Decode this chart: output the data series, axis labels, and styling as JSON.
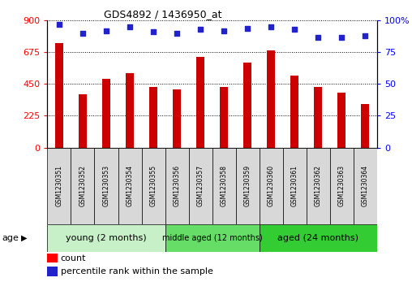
{
  "title": "GDS4892 / 1436950_at",
  "samples": [
    "GSM1230351",
    "GSM1230352",
    "GSM1230353",
    "GSM1230354",
    "GSM1230355",
    "GSM1230356",
    "GSM1230357",
    "GSM1230358",
    "GSM1230359",
    "GSM1230360",
    "GSM1230361",
    "GSM1230362",
    "GSM1230363",
    "GSM1230364"
  ],
  "counts": [
    740,
    380,
    490,
    530,
    430,
    410,
    645,
    430,
    600,
    690,
    510,
    430,
    390,
    310
  ],
  "percentiles": [
    97,
    90,
    92,
    95,
    91,
    90,
    93,
    92,
    94,
    95,
    93,
    87,
    87,
    88
  ],
  "groups": [
    {
      "label": "young (2 months)",
      "start": 0,
      "end": 5,
      "color": "#c8f0c8"
    },
    {
      "label": "middle aged (12 months)",
      "start": 5,
      "end": 9,
      "color": "#66dd66"
    },
    {
      "label": "aged (24 months)",
      "start": 9,
      "end": 14,
      "color": "#33cc33"
    }
  ],
  "bar_color": "#cc0000",
  "dot_color": "#2222cc",
  "ylim_left": [
    0,
    900
  ],
  "ylim_right": [
    0,
    100
  ],
  "yticks_left": [
    0,
    225,
    450,
    675,
    900
  ],
  "yticks_right": [
    0,
    25,
    50,
    75,
    100
  ],
  "ytick_right_labels": [
    "0",
    "25",
    "50",
    "75",
    "100%"
  ],
  "plot_bg_color": "#ffffff",
  "sample_cell_color": "#d8d8d8",
  "age_label": "age",
  "legend_count_label": "count",
  "legend_pct_label": "percentile rank within the sample",
  "bar_width": 0.35
}
